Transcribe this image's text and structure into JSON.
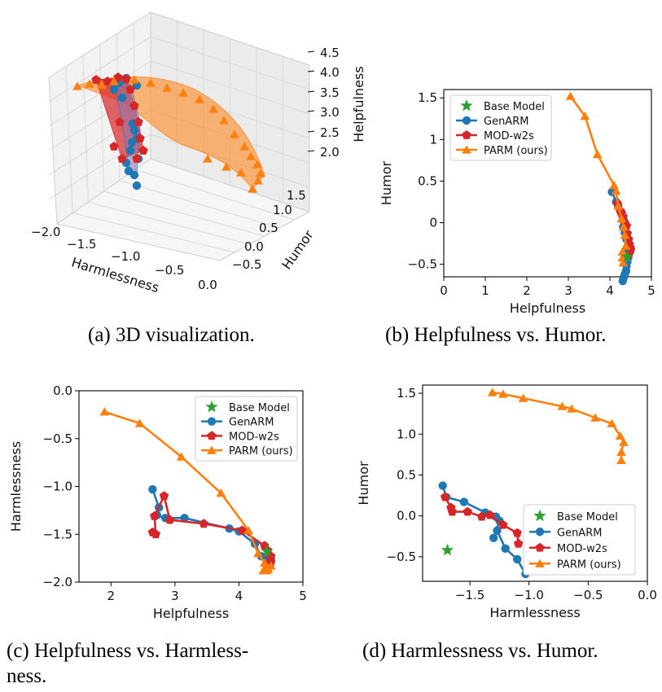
{
  "colors": {
    "base": "#2ca02c",
    "genarm": "#1f77b4",
    "mod": "#d62728",
    "parm": "#ff7f0e"
  },
  "legend": {
    "base": "Base Model",
    "genarm": "GenARM",
    "mod": "MOD-w2s",
    "parm": "PARM (ours)"
  },
  "captions": {
    "a": "(a) 3D visualization.",
    "b": "(b) Helpfulness vs. Humor.",
    "c1": "(c) Helpfulness vs.  Harmless-",
    "c2": "ness.",
    "d": "(d) Harmlessness vs. Humor."
  },
  "chart_data": [
    {
      "id": "a",
      "type": "scatter3d",
      "xlabel": "Harmlessness",
      "ylabel": "Humor",
      "zlabel": "Helpfulness",
      "x_ticks": [
        "−2.0",
        "−1.5",
        "−1.0",
        "−0.5",
        "0.0"
      ],
      "y_ticks": [
        "−0.5",
        "0.0",
        "0.5",
        "1.0",
        "1.5"
      ],
      "z_ticks": [
        "2.0",
        "2.5",
        "3.0",
        "3.5",
        "4.0",
        "4.5"
      ]
    },
    {
      "id": "b",
      "type": "line",
      "xlabel": "Helpfulness",
      "ylabel": "Humor",
      "xlim": [
        0,
        5
      ],
      "ylim": [
        -0.65,
        1.6
      ],
      "x_ticks": [
        0,
        1,
        2,
        3,
        4,
        5
      ],
      "y_ticks": [
        -0.5,
        0.0,
        0.5,
        1.0,
        1.5
      ],
      "legend_position": "upper-left",
      "series": [
        {
          "key": "base",
          "marker": "star",
          "points": [
            [
              4.42,
              -0.41
            ]
          ]
        },
        {
          "key": "genarm",
          "marker": "circle",
          "points": [
            [
              4.05,
              0.37
            ],
            [
              4.15,
              0.25
            ],
            [
              4.2,
              0.2
            ],
            [
              4.28,
              0.12
            ],
            [
              4.32,
              0.05
            ],
            [
              4.35,
              0.01
            ],
            [
              4.32,
              -0.05
            ],
            [
              4.36,
              -0.12
            ],
            [
              4.4,
              -0.2
            ],
            [
              4.43,
              -0.28
            ],
            [
              4.45,
              -0.35
            ],
            [
              4.44,
              -0.42
            ],
            [
              4.42,
              -0.47
            ],
            [
              4.4,
              -0.52
            ],
            [
              4.39,
              -0.58
            ],
            [
              4.36,
              -0.62
            ],
            [
              4.33,
              -0.66
            ],
            [
              4.31,
              -0.7
            ]
          ]
        },
        {
          "key": "mod",
          "marker": "pentagon",
          "points": [
            [
              4.18,
              0.23
            ],
            [
              4.25,
              0.14
            ],
            [
              4.28,
              0.11
            ],
            [
              4.32,
              0.07
            ],
            [
              4.36,
              -0.01
            ],
            [
              4.4,
              -0.04
            ],
            [
              4.42,
              -0.13
            ],
            [
              4.45,
              -0.2
            ],
            [
              4.47,
              -0.26
            ],
            [
              4.49,
              -0.3
            ],
            [
              4.5,
              -0.33
            ],
            [
              4.46,
              -0.38
            ]
          ]
        },
        {
          "key": "parm",
          "marker": "triangle",
          "points": [
            [
              3.05,
              1.52
            ],
            [
              3.4,
              1.28
            ],
            [
              3.7,
              0.82
            ],
            [
              4.1,
              0.45
            ],
            [
              4.15,
              0.38
            ],
            [
              4.2,
              0.2
            ],
            [
              4.28,
              0.05
            ],
            [
              4.33,
              -0.05
            ],
            [
              4.36,
              -0.15
            ],
            [
              4.38,
              -0.28
            ],
            [
              4.3,
              -0.35
            ],
            [
              4.3,
              -0.42
            ],
            [
              4.32,
              -0.48
            ]
          ]
        }
      ]
    },
    {
      "id": "c",
      "type": "line",
      "xlabel": "Helpfulness",
      "ylabel": "Harmlessness",
      "xlim": [
        1.5,
        5
      ],
      "ylim": [
        -2.0,
        0.0
      ],
      "x_ticks": [
        2,
        3,
        4,
        5
      ],
      "y_ticks": [
        0.0,
        -0.5,
        -1.0,
        -1.5,
        -2.0
      ],
      "legend_position": "upper-right",
      "series": [
        {
          "key": "base",
          "marker": "star",
          "points": [
            [
              4.44,
              -1.68
            ]
          ]
        },
        {
          "key": "genarm",
          "marker": "circle",
          "points": [
            [
              2.65,
              -1.03
            ],
            [
              2.75,
              -1.22
            ],
            [
              2.72,
              -1.3
            ],
            [
              2.85,
              -1.33
            ],
            [
              3.15,
              -1.33
            ],
            [
              3.85,
              -1.44
            ],
            [
              4.0,
              -1.47
            ],
            [
              4.25,
              -1.6
            ],
            [
              4.35,
              -1.73
            ],
            [
              4.45,
              -1.76
            ],
            [
              4.5,
              -1.75
            ]
          ]
        },
        {
          "key": "mod",
          "marker": "pentagon",
          "points": [
            [
              2.65,
              -1.48
            ],
            [
              2.7,
              -1.5
            ],
            [
              2.68,
              -1.31
            ],
            [
              2.83,
              -1.1
            ],
            [
              2.92,
              -1.35
            ],
            [
              3.45,
              -1.39
            ],
            [
              4.05,
              -1.46
            ],
            [
              4.4,
              -1.62
            ],
            [
              4.45,
              -1.67
            ],
            [
              4.5,
              -1.73
            ],
            [
              4.5,
              -1.79
            ]
          ]
        },
        {
          "key": "parm",
          "marker": "triangle",
          "points": [
            [
              1.9,
              -0.22
            ],
            [
              2.45,
              -0.34
            ],
            [
              3.1,
              -0.69
            ],
            [
              3.72,
              -1.07
            ],
            [
              4.15,
              -1.46
            ],
            [
              4.3,
              -1.7
            ],
            [
              4.4,
              -1.8
            ],
            [
              4.43,
              -1.84
            ],
            [
              4.44,
              -1.88
            ],
            [
              4.38,
              -1.88
            ],
            [
              4.46,
              -1.86
            ],
            [
              4.5,
              -1.83
            ]
          ]
        }
      ]
    },
    {
      "id": "d",
      "type": "line",
      "xlabel": "Harmlessness",
      "ylabel": "Humor",
      "xlim": [
        -1.9,
        0.0
      ],
      "ylim": [
        -0.8,
        1.6
      ],
      "x_ticks": [
        -1.5,
        -1.0,
        -0.5,
        0.0
      ],
      "y_ticks": [
        -0.5,
        0.0,
        0.5,
        1.0,
        1.5
      ],
      "legend_position": "lower-right",
      "series": [
        {
          "key": "base",
          "marker": "star",
          "points": [
            [
              -1.69,
              -0.42
            ]
          ]
        },
        {
          "key": "genarm",
          "marker": "circle",
          "points": [
            [
              -1.73,
              0.37
            ],
            [
              -1.7,
              0.23
            ],
            [
              -1.55,
              0.17
            ],
            [
              -1.37,
              0.04
            ],
            [
              -1.28,
              -0.01
            ],
            [
              -1.25,
              -0.06
            ],
            [
              -1.3,
              -0.27
            ],
            [
              -1.27,
              -0.18
            ],
            [
              -1.2,
              -0.4
            ],
            [
              -1.1,
              -0.53
            ],
            [
              -1.03,
              -0.71
            ]
          ]
        },
        {
          "key": "mod",
          "marker": "pentagon",
          "points": [
            [
              -1.71,
              0.23
            ],
            [
              -1.66,
              0.1
            ],
            [
              -1.65,
              0.05
            ],
            [
              -1.52,
              0.05
            ],
            [
              -1.4,
              -0.01
            ],
            [
              -1.33,
              0.01
            ],
            [
              -1.22,
              -0.11
            ],
            [
              -1.1,
              -0.21
            ],
            [
              -1.09,
              -0.34
            ]
          ]
        },
        {
          "key": "parm",
          "marker": "triangle",
          "points": [
            [
              -1.31,
              1.51
            ],
            [
              -1.22,
              1.49
            ],
            [
              -1.05,
              1.44
            ],
            [
              -0.72,
              1.34
            ],
            [
              -0.64,
              1.31
            ],
            [
              -0.44,
              1.2
            ],
            [
              -0.3,
              1.13
            ],
            [
              -0.23,
              0.98
            ],
            [
              -0.2,
              0.9
            ],
            [
              -0.22,
              0.78
            ],
            [
              -0.22,
              0.68
            ]
          ]
        }
      ]
    }
  ]
}
